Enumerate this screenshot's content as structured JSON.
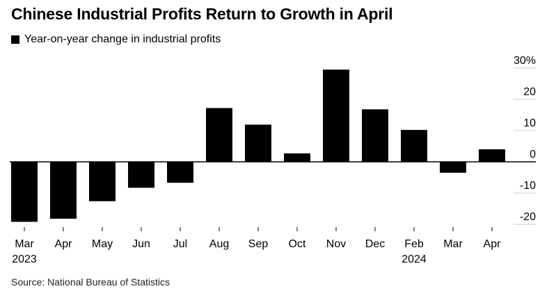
{
  "title": "Chinese Industrial Profits Return to Growth in April",
  "legend_label": "Year-on-year change in industrial profits",
  "source": "Source: National Bureau of Statistics",
  "colors": {
    "bar": "#000000",
    "grid": "#cccccc",
    "axis": "#000000"
  },
  "chart_data": {
    "type": "bar",
    "categories": [
      "Mar",
      "Apr",
      "May",
      "Jun",
      "Jul",
      "Aug",
      "Sep",
      "Oct",
      "Nov",
      "Dec",
      "Feb",
      "Mar",
      "Apr"
    ],
    "year_labels": [
      "2023",
      "",
      "",
      "",
      "",
      "",
      "",
      "",
      "",
      "",
      "2024",
      "",
      ""
    ],
    "values": [
      -19.2,
      -18.2,
      -12.6,
      -8.3,
      -6.7,
      17.2,
      11.9,
      2.7,
      29.5,
      16.8,
      10.2,
      -3.5,
      4.0
    ],
    "series": [
      {
        "name": "Year-on-year change in industrial profits",
        "values": [
          -19.2,
          -18.2,
          -12.6,
          -8.3,
          -6.7,
          17.2,
          11.9,
          2.7,
          29.5,
          16.8,
          10.2,
          -3.5,
          4.0
        ]
      }
    ],
    "y_ticks": [
      30,
      20,
      10,
      0,
      -10,
      -20
    ],
    "y_tick_labels": [
      "30%",
      "20",
      "10",
      "0",
      "-10",
      "-20"
    ],
    "ylim": [
      -20,
      30
    ],
    "xlabel": "",
    "ylabel": "",
    "legend_position": "top-left",
    "grid": true
  }
}
